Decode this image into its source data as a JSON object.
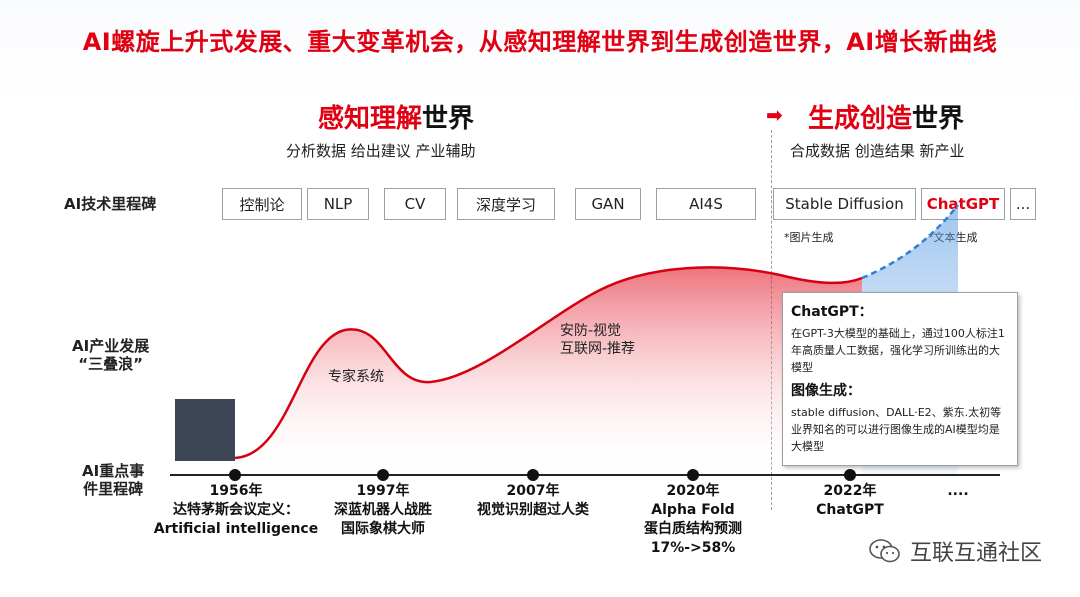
{
  "title": "AI螺旋上升式发展、重大变革机会，从感知理解世界到生成创造世界，AI增长新曲线",
  "left_section": {
    "heading_red": "感知理解",
    "heading_dark": "世界",
    "subtitle": "分析数据 给出建议 产业辅助"
  },
  "right_section": {
    "heading_red": "生成创造",
    "heading_dark": "世界",
    "subtitle": "合成数据 创造结果 新产业"
  },
  "row_labels": {
    "milestones": "AI技术里程碑",
    "industry_line1": "AI产业发展",
    "industry_line2": "“三叠浪”",
    "events_line1": "AI重点事",
    "events_line2": "件里程碑"
  },
  "tech_milestones": [
    "控制论",
    "NLP",
    "CV",
    "深度学习",
    "GAN",
    "AI4S",
    "Stable Diffusion",
    "ChatGPT",
    "..."
  ],
  "milestone_notes": {
    "image_gen": "*图片生成",
    "text_gen": "*文本生成"
  },
  "curve_labels": {
    "expert_systems": "专家系统",
    "security_line1": "安防-视觉",
    "security_line2": "互联网-推荐"
  },
  "events": [
    {
      "line1": "1956年",
      "line2": "达特茅斯会议定义：",
      "line3": "Artificial intelligence"
    },
    {
      "line1": "1997年",
      "line2": "深蓝机器人战胜",
      "line3": "国际象棋大师"
    },
    {
      "line1": "2007年",
      "line2": "视觉识别超过人类",
      "line3": ""
    },
    {
      "line1": "2020年",
      "line2": "Alpha Fold",
      "line3": "蛋白质结构预测",
      "line4": "17%->58%"
    },
    {
      "line1": "2022年",
      "line2": "ChatGPT",
      "line3": ""
    },
    {
      "line1": "....",
      "line2": "",
      "line3": ""
    }
  ],
  "info_box": {
    "chatgpt_heading": "ChatGPT：",
    "chatgpt_text": "在GPT-3大模型的基础上，通过100人标注1年高质量人工数据，强化学习所训练出的大模型",
    "image_heading": "图像生成：",
    "image_text": "stable diffusion、DALL·E2、紫东.太初等业界知名的可以进行图像生成的AI模型均是大模型"
  },
  "watermark": "互联互通社区",
  "colors": {
    "accent_red": "#e00012",
    "dark_block": "#3c4656",
    "growth_blue": "#2f7fd6"
  }
}
